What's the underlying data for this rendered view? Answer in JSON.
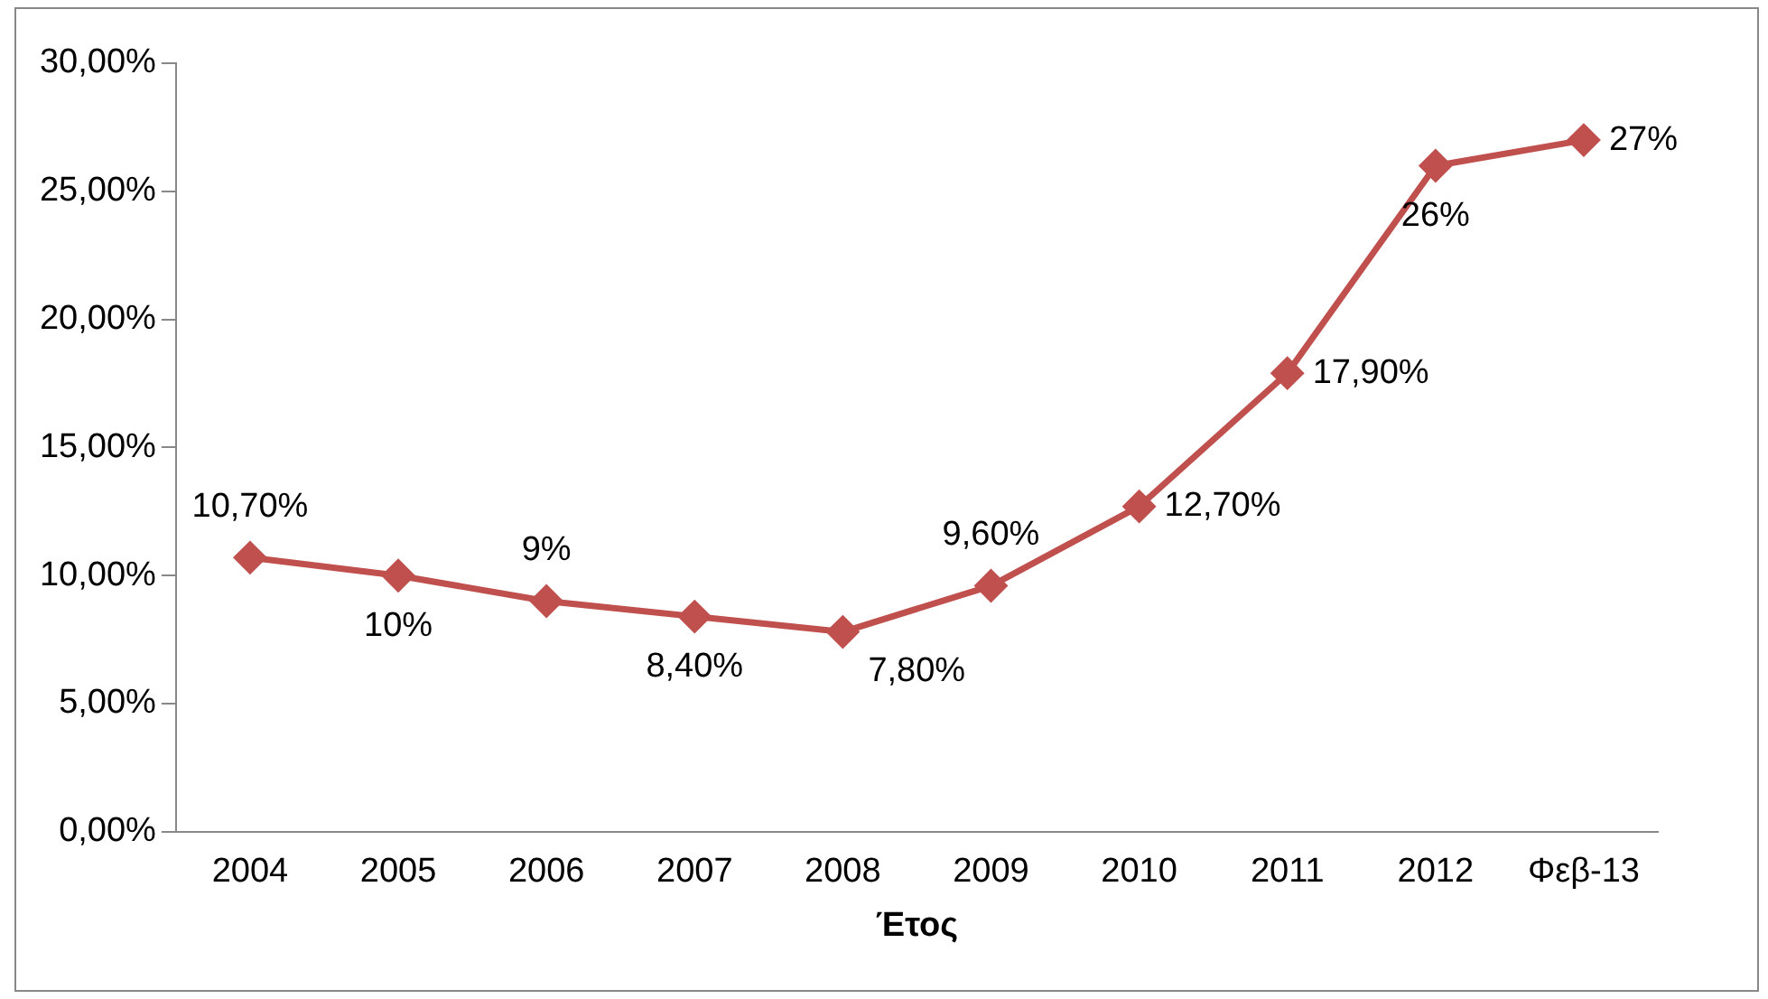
{
  "chart_data": {
    "type": "line",
    "xlabel": "Έτος",
    "categories": [
      "2004",
      "2005",
      "2006",
      "2007",
      "2008",
      "2009",
      "2010",
      "2011",
      "2012",
      "Φεβ-13"
    ],
    "series": [
      {
        "color": "#c0504d",
        "values": [
          10.7,
          10,
          9,
          8.4,
          7.8,
          9.6,
          12.7,
          17.9,
          26,
          27
        ],
        "value_labels": [
          "10,70%",
          "10%",
          "9%",
          "8,40%",
          "7,80%",
          "9,60%",
          "12,70%",
          "17,90%",
          "26%",
          "27%"
        ]
      }
    ],
    "ylim": [
      0,
      30
    ],
    "yticks": [
      {
        "value": 0,
        "label": "0,00%"
      },
      {
        "value": 5,
        "label": "5,00%"
      },
      {
        "value": 10,
        "label": "10,00%"
      },
      {
        "value": 15,
        "label": "15,00%"
      },
      {
        "value": 20,
        "label": "20,00%"
      },
      {
        "value": 25,
        "label": "25,00%"
      },
      {
        "value": 30,
        "label": "30,00%"
      }
    ],
    "grid": false,
    "legend": false,
    "marker": "diamond",
    "line_style": "solid"
  }
}
